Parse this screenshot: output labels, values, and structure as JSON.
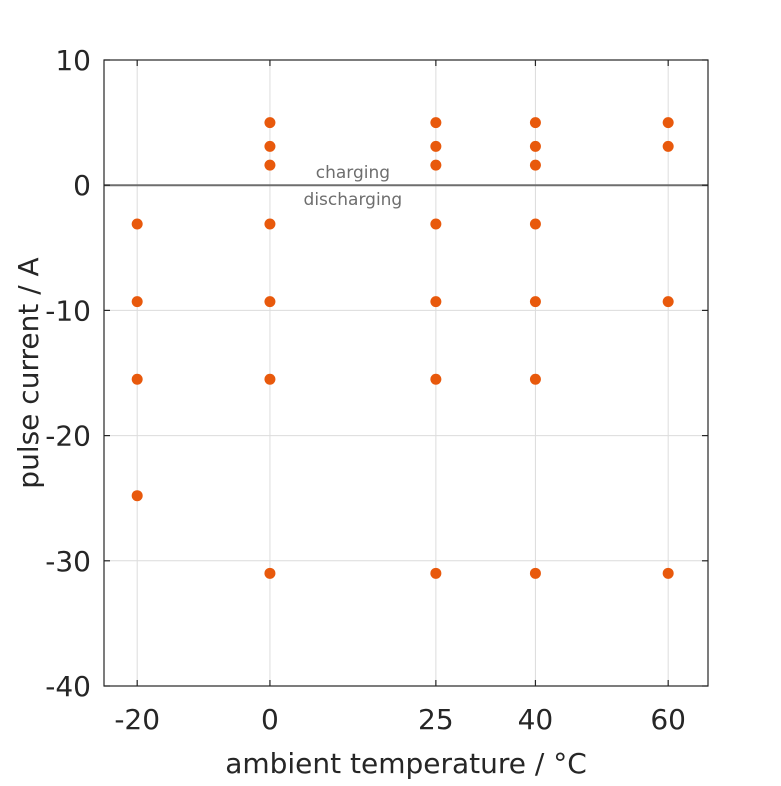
{
  "chart_data": {
    "type": "scatter",
    "xlabel": "ambient temperature / °C",
    "ylabel": "pulse current / A",
    "xlim": [
      -25,
      66
    ],
    "ylim": [
      -40,
      10
    ],
    "xticks": [
      -20,
      0,
      25,
      40,
      60
    ],
    "yticks": [
      -40,
      -30,
      -20,
      -10,
      0,
      10
    ],
    "grid": true,
    "reference_line": {
      "y": 0,
      "label_above": "charging",
      "label_below": "discharging"
    },
    "colors": {
      "points": "#e8590c",
      "reference_line": "#6e6e6e",
      "grid": "#dcdcdc",
      "axes": "#262626",
      "text": "#262626"
    },
    "series": [
      {
        "points": [
          {
            "x": -20,
            "y": -3.1
          },
          {
            "x": -20,
            "y": -9.3
          },
          {
            "x": -20,
            "y": -15.5
          },
          {
            "x": -20,
            "y": -24.8
          },
          {
            "x": 0,
            "y": 5
          },
          {
            "x": 0,
            "y": 3.1
          },
          {
            "x": 0,
            "y": 1.6
          },
          {
            "x": 0,
            "y": -3.1
          },
          {
            "x": 0,
            "y": -9.3
          },
          {
            "x": 0,
            "y": -15.5
          },
          {
            "x": 0,
            "y": -31
          },
          {
            "x": 25,
            "y": 5
          },
          {
            "x": 25,
            "y": 3.1
          },
          {
            "x": 25,
            "y": 1.6
          },
          {
            "x": 25,
            "y": -3.1
          },
          {
            "x": 25,
            "y": -9.3
          },
          {
            "x": 25,
            "y": -15.5
          },
          {
            "x": 25,
            "y": -31
          },
          {
            "x": 40,
            "y": 5
          },
          {
            "x": 40,
            "y": 3.1
          },
          {
            "x": 40,
            "y": 1.6
          },
          {
            "x": 40,
            "y": -3.1
          },
          {
            "x": 40,
            "y": -9.3
          },
          {
            "x": 40,
            "y": -15.5
          },
          {
            "x": 40,
            "y": -31
          },
          {
            "x": 60,
            "y": 5
          },
          {
            "x": 60,
            "y": 3.1
          },
          {
            "x": 60,
            "y": -9.3
          },
          {
            "x": 60,
            "y": -31
          }
        ]
      }
    ]
  }
}
